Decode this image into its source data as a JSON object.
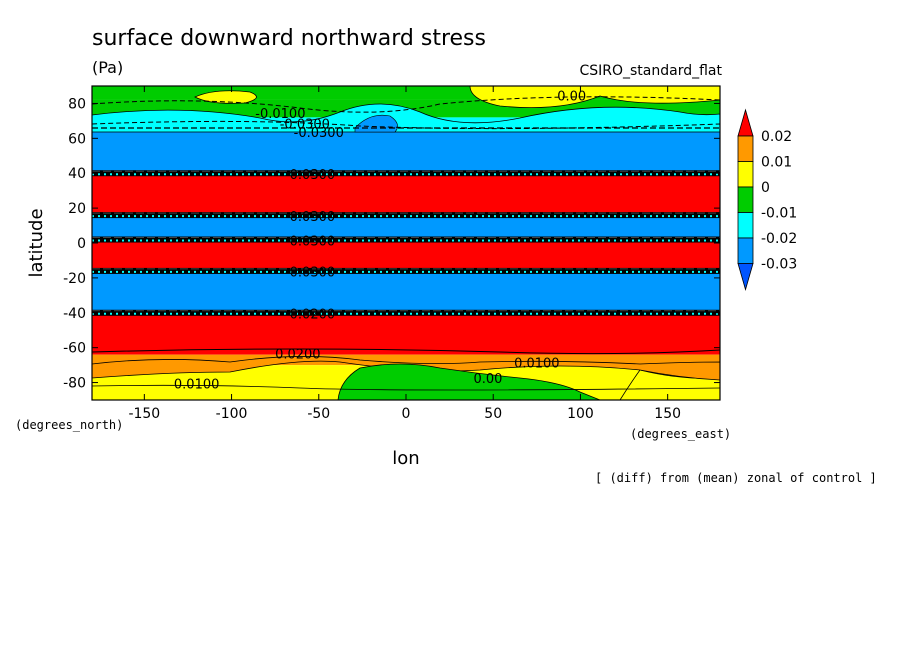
{
  "chart_data": {
    "type": "contour-map",
    "title": "surface downward northward stress",
    "units": "(Pa)",
    "model": "CSIRO_standard_flat",
    "xlabel": "lon",
    "ylabel": "latitude",
    "x_units": "(degrees_east)",
    "y_units": "(degrees_north)",
    "footnote": "[ (diff) from (mean) zonal of control ]",
    "xlim": [
      -180,
      180
    ],
    "ylim": [
      -90,
      90
    ],
    "x_ticks": [
      -150,
      -100,
      -50,
      0,
      50,
      100,
      150
    ],
    "y_ticks": [
      80,
      60,
      40,
      20,
      0,
      -20,
      -40,
      -60,
      -80
    ],
    "x_tick_labels": [
      "-150",
      "-100",
      "-50",
      "0",
      "50",
      "100",
      "150"
    ],
    "y_tick_labels": [
      "80",
      "60",
      "40",
      "20",
      "0",
      "-20",
      "-40",
      "-60",
      "-80"
    ],
    "colorbar": {
      "levels": [
        0.02,
        0.01,
        0,
        -0.01,
        -0.02,
        -0.03
      ],
      "labels": [
        "0.02",
        "0.01",
        "0",
        "-0.01",
        "-0.02",
        "-0.03"
      ],
      "colors": [
        "#ff0000",
        "#ff9900",
        "#ffff00",
        "#00cc00",
        "#00ffff",
        "#0099ff",
        "#0055ff"
      ]
    },
    "bands": [
      {
        "lat_top": 90,
        "lat_bottom": 82,
        "color": "#00cc00"
      },
      {
        "lat_top": 82,
        "lat_bottom": 72,
        "color": "#00cc00"
      },
      {
        "lat_top": 72,
        "lat_bottom": 66,
        "color": "#00ffff"
      },
      {
        "lat_top": 66,
        "lat_bottom": 40,
        "color": "#0099ff"
      },
      {
        "lat_top": 40,
        "lat_bottom": 16,
        "color": "#ff0000"
      },
      {
        "lat_top": 16,
        "lat_bottom": 2,
        "color": "#0099ff"
      },
      {
        "lat_top": 2,
        "lat_bottom": -16,
        "color": "#ff0000"
      },
      {
        "lat_top": -16,
        "lat_bottom": -40,
        "color": "#0099ff"
      },
      {
        "lat_top": -40,
        "lat_bottom": -64,
        "color": "#ff0000"
      },
      {
        "lat_top": -64,
        "lat_bottom": -70,
        "color": "#ff9900"
      },
      {
        "lat_top": -70,
        "lat_bottom": -90,
        "color": "#ffff00"
      }
    ],
    "boundary_lats": [
      40,
      16,
      2,
      -16,
      -40
    ],
    "contour_labels": [
      {
        "text": "0.00",
        "lon": 95,
        "lat": 84
      },
      {
        "text": "-0.0100",
        "lon": -72,
        "lat": 74
      },
      {
        "text": "-0.0300",
        "lon": -58,
        "lat": 68
      },
      {
        "text": "-0.0300",
        "lon": -50,
        "lat": 63
      },
      {
        "text": "-0.0300",
        "lon": -55,
        "lat": 39
      },
      {
        "text": "-0.0300",
        "lon": -55,
        "lat": 15
      },
      {
        "text": "-0.0300",
        "lon": -55,
        "lat": 1
      },
      {
        "text": "-0.0300",
        "lon": -55,
        "lat": -17
      },
      {
        "text": "-0.0200",
        "lon": -55,
        "lat": -41
      },
      {
        "text": "0.0200",
        "lon": -62,
        "lat": -64
      },
      {
        "text": "0.0100",
        "lon": 75,
        "lat": -69
      },
      {
        "text": "0.00",
        "lon": 47,
        "lat": -78
      },
      {
        "text": "0.0100",
        "lon": -120,
        "lat": -81
      }
    ]
  }
}
